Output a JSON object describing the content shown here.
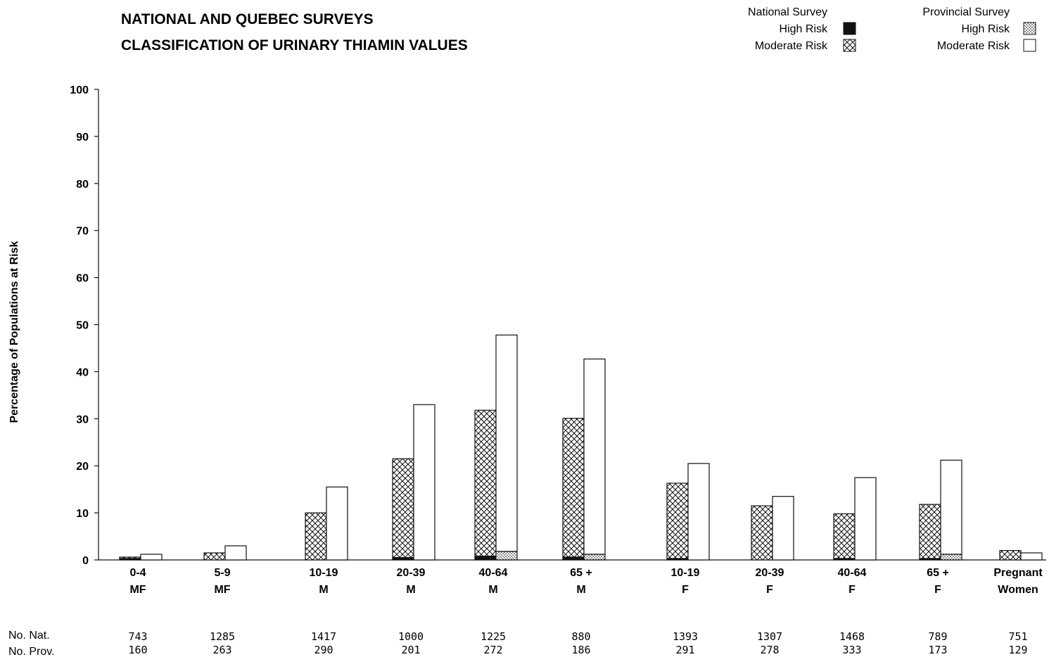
{
  "header": {
    "title_line1": "NATIONAL AND QUEBEC SURVEYS",
    "title_line2": "CLASSIFICATION OF URINARY THIAMIN VALUES"
  },
  "legend": {
    "national": {
      "title": "National Survey",
      "high": "High Risk",
      "moderate": "Moderate Risk"
    },
    "provincial": {
      "title": "Provincial Survey",
      "high": "High Risk",
      "moderate": "Moderate Risk"
    }
  },
  "colors": {
    "ink": "#111111",
    "background": "#ffffff"
  },
  "chart_data": {
    "type": "bar",
    "ylabel": "Percentage of Populations at Risk",
    "ylim": [
      0,
      100
    ],
    "yticks": [
      0,
      10,
      20,
      30,
      40,
      50,
      60,
      70,
      80,
      90,
      100
    ],
    "categories": [
      {
        "line1": "0-4",
        "line2": "MF"
      },
      {
        "line1": "5-9",
        "line2": "MF"
      },
      {
        "line1": "10-19",
        "line2": "M"
      },
      {
        "line1": "20-39",
        "line2": "M"
      },
      {
        "line1": "40-64",
        "line2": "M"
      },
      {
        "line1": "65 +",
        "line2": "M"
      },
      {
        "line1": "10-19",
        "line2": "F"
      },
      {
        "line1": "20-39",
        "line2": "F"
      },
      {
        "line1": "40-64",
        "line2": "F"
      },
      {
        "line1": "65 +",
        "line2": "F"
      },
      {
        "line1": "Pregnant",
        "line2": "Women"
      }
    ],
    "series": [
      {
        "name": "National Survey High Risk",
        "values": [
          0.3,
          0,
          0,
          0.5,
          0.8,
          0.6,
          0.3,
          0,
          0.3,
          0.3,
          0
        ]
      },
      {
        "name": "National Survey Moderate Risk",
        "values": [
          0.3,
          1.5,
          10,
          21,
          31,
          29.5,
          16,
          11.5,
          9.5,
          11.5,
          2
        ]
      },
      {
        "name": "Provincial Survey High Risk",
        "values": [
          0,
          0,
          0,
          0,
          1.8,
          1.2,
          0,
          0,
          0,
          1.2,
          0
        ]
      },
      {
        "name": "Provincial Survey Moderate Risk",
        "values": [
          1.2,
          3,
          15.5,
          33,
          46,
          41.5,
          20.5,
          13.5,
          17.5,
          20,
          1.5
        ]
      }
    ],
    "counts": {
      "national_label": "No. Nat.",
      "provincial_label": "No. Prov.",
      "national": [
        "743",
        "1285",
        "1417",
        "1000",
        "1225",
        "880",
        "1393",
        "1307",
        "1468",
        "789",
        "751"
      ],
      "provincial": [
        "160",
        "263",
        "290",
        "201",
        "272",
        "186",
        "291",
        "278",
        "333",
        "173",
        "129"
      ]
    }
  }
}
